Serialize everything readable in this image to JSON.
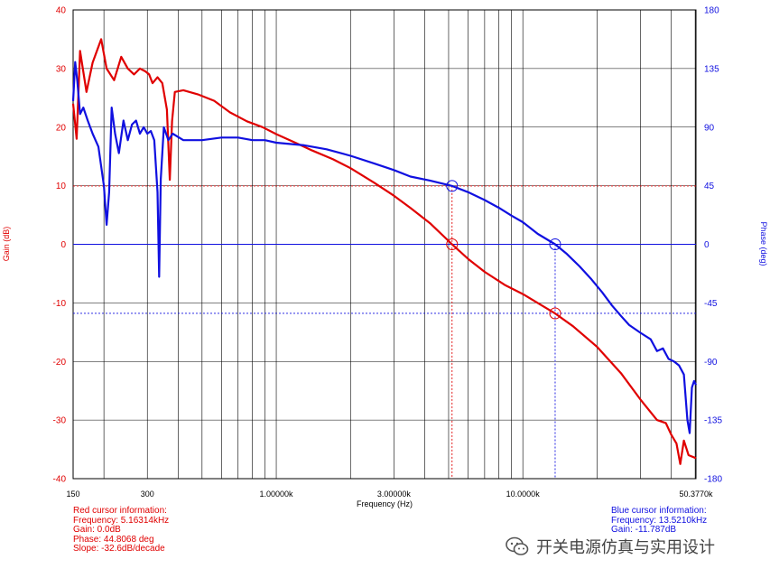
{
  "chart_data": {
    "type": "line",
    "xlabel": "Frequency (Hz)",
    "ylabel_left": "Gain (dB)",
    "ylabel_right": "Phase (deg)",
    "x_scale": "log",
    "xlim": [
      150,
      50377
    ],
    "ylim_left": [
      -40,
      40
    ],
    "ylim_right": [
      -180,
      180
    ],
    "grid": true,
    "x_tick_labels": [
      {
        "value": 150,
        "label": "150"
      },
      {
        "value": 300,
        "label": "300"
      },
      {
        "value": 1000,
        "label": "1.00000k"
      },
      {
        "value": 3000,
        "label": "3.00000k"
      },
      {
        "value": 10000,
        "label": "10.0000k"
      },
      {
        "value": 50377,
        "label": "50.3770k"
      }
    ],
    "y_left_ticks": [
      40,
      30,
      20,
      10,
      0,
      -10,
      -20,
      -30,
      -40
    ],
    "y_right_ticks": [
      180,
      135,
      90,
      45,
      0,
      -45,
      -90,
      -135,
      -180
    ],
    "series": [
      {
        "name": "Gain",
        "axis": "left",
        "color": "#e00000",
        "points": [
          [
            150,
            24
          ],
          [
            155,
            18
          ],
          [
            160,
            33
          ],
          [
            170,
            26
          ],
          [
            180,
            31
          ],
          [
            195,
            35
          ],
          [
            205,
            30
          ],
          [
            220,
            28
          ],
          [
            235,
            32
          ],
          [
            250,
            30
          ],
          [
            265,
            29
          ],
          [
            280,
            30
          ],
          [
            295,
            29.5
          ],
          [
            305,
            29
          ],
          [
            315,
            27.5
          ],
          [
            330,
            28.5
          ],
          [
            345,
            27.5
          ],
          [
            360,
            23
          ],
          [
            370,
            11
          ],
          [
            378,
            21
          ],
          [
            388,
            26
          ],
          [
            420,
            26.3
          ],
          [
            480,
            25.6
          ],
          [
            560,
            24.5
          ],
          [
            650,
            22.5
          ],
          [
            760,
            21
          ],
          [
            880,
            20
          ],
          [
            1000,
            18.8
          ],
          [
            1200,
            17.3
          ],
          [
            1400,
            16
          ],
          [
            1700,
            14.5
          ],
          [
            2000,
            13
          ],
          [
            2500,
            10.5
          ],
          [
            3000,
            8.3
          ],
          [
            3500,
            6.2
          ],
          [
            4200,
            3.6
          ],
          [
            5163,
            0
          ],
          [
            6000,
            -2.5
          ],
          [
            7000,
            -4.7
          ],
          [
            8500,
            -7
          ],
          [
            10000,
            -8.5
          ],
          [
            12000,
            -10.5
          ],
          [
            13521,
            -11.8
          ],
          [
            16000,
            -14
          ],
          [
            20000,
            -17.5
          ],
          [
            25000,
            -22
          ],
          [
            30000,
            -26.5
          ],
          [
            35000,
            -30
          ],
          [
            38000,
            -30.5
          ],
          [
            40000,
            -32.5
          ],
          [
            42000,
            -34
          ],
          [
            43500,
            -37.5
          ],
          [
            45000,
            -33.5
          ],
          [
            47000,
            -36
          ],
          [
            50377,
            -36.5
          ]
        ]
      },
      {
        "name": "Phase",
        "axis": "right",
        "color": "#1010e0",
        "points": [
          [
            150,
            110
          ],
          [
            153,
            140
          ],
          [
            156,
            125
          ],
          [
            160,
            100
          ],
          [
            165,
            105
          ],
          [
            172,
            95
          ],
          [
            180,
            85
          ],
          [
            190,
            75
          ],
          [
            200,
            45
          ],
          [
            205,
            15
          ],
          [
            210,
            40
          ],
          [
            215,
            105
          ],
          [
            222,
            85
          ],
          [
            230,
            70
          ],
          [
            240,
            95
          ],
          [
            250,
            80
          ],
          [
            260,
            92
          ],
          [
            270,
            95
          ],
          [
            280,
            85
          ],
          [
            290,
            90
          ],
          [
            300,
            85
          ],
          [
            310,
            87
          ],
          [
            320,
            80
          ],
          [
            330,
            40
          ],
          [
            335,
            -25
          ],
          [
            340,
            50
          ],
          [
            350,
            90
          ],
          [
            365,
            80
          ],
          [
            380,
            85
          ],
          [
            420,
            80
          ],
          [
            500,
            80
          ],
          [
            600,
            82
          ],
          [
            700,
            82
          ],
          [
            800,
            80
          ],
          [
            900,
            80
          ],
          [
            1000,
            78
          ],
          [
            1300,
            76
          ],
          [
            1600,
            73
          ],
          [
            2000,
            68
          ],
          [
            2500,
            62
          ],
          [
            3000,
            57
          ],
          [
            3500,
            52
          ],
          [
            4200,
            49
          ],
          [
            5000,
            45.5
          ],
          [
            5163,
            44.8
          ],
          [
            6000,
            40
          ],
          [
            7000,
            34
          ],
          [
            8000,
            28
          ],
          [
            9000,
            22
          ],
          [
            10000,
            17
          ],
          [
            11500,
            8
          ],
          [
            13521,
            0
          ],
          [
            15000,
            -7
          ],
          [
            17000,
            -17
          ],
          [
            19000,
            -27
          ],
          [
            21000,
            -37
          ],
          [
            23000,
            -47
          ],
          [
            25000,
            -55
          ],
          [
            27000,
            -62
          ],
          [
            30000,
            -68
          ],
          [
            33000,
            -73
          ],
          [
            35000,
            -82
          ],
          [
            37000,
            -80
          ],
          [
            39000,
            -88
          ],
          [
            41000,
            -90
          ],
          [
            43000,
            -93
          ],
          [
            45000,
            -100
          ],
          [
            46500,
            -135
          ],
          [
            47500,
            -145
          ],
          [
            48500,
            -110
          ],
          [
            49500,
            -105
          ],
          [
            50377,
            -108
          ]
        ]
      }
    ],
    "cursors": [
      {
        "name": "Red",
        "color": "#e00000",
        "frequency": 5163.14,
        "gain": 0.0,
        "phase": 44.8068
      },
      {
        "name": "Blue",
        "color": "#1010e0",
        "frequency": 13521.0,
        "gain": -11.787,
        "phase": 0
      }
    ],
    "red_cursor_info": {
      "title": "Red cursor information:",
      "frequency": "Frequency: 5.16314kHz",
      "gain": "Gain: 0.0dB",
      "phase": "Phase: 44.8068 deg",
      "slope": "Slope: -32.6dB/decade"
    },
    "blue_cursor_info": {
      "title": "Blue cursor information:",
      "frequency": "Frequency: 13.5210kHz",
      "gain": "Gain: -11.787dB"
    }
  },
  "watermark": {
    "text": "开关电源仿真与实用设计",
    "icon": "wechat-icon"
  }
}
